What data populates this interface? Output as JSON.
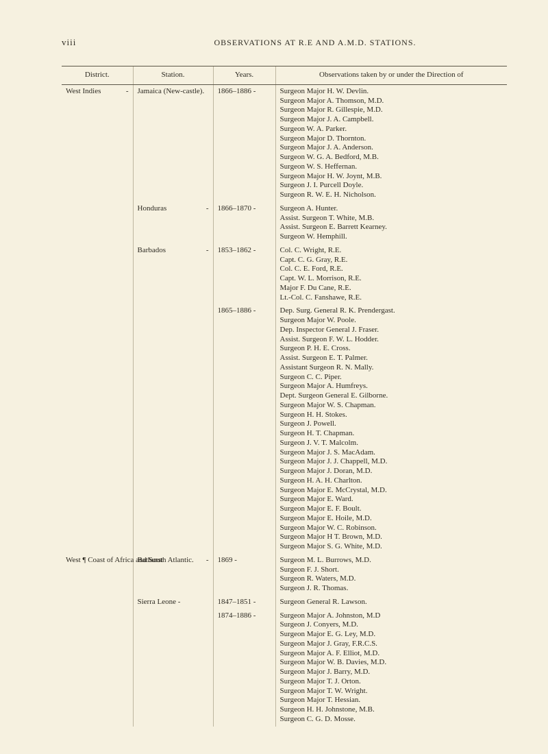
{
  "page_number_label": "viii",
  "running_title": "OBSERVATIONS AT R.E AND A.M.D. STATIONS.",
  "columns": {
    "district": "District.",
    "station": "Station.",
    "years": "Years.",
    "observations": "Observations taken by or under the Direction of"
  },
  "rows": [
    {
      "district": "West Indies",
      "district_dash": "-",
      "station": "Jamaica (New-castle).",
      "years": "1866–1886 -",
      "observations": [
        "Surgeon Major H. W. Devlin.",
        "Surgeon Major A. Thomson, M.D.",
        "Surgeon Major R. Gillespie, M.D.",
        "Surgeon Major J. A. Campbell.",
        "Surgeon W. A. Parker.",
        "Surgeon Major D. Thornton.",
        "Surgeon Major J. A. Anderson.",
        "Surgeon W. G. A. Bedford, M.B.",
        "Surgeon W. S. Heffernan.",
        "Surgeon Major H. W. Joynt, M.B.",
        "Surgeon J. I. Purcell Doyle.",
        "Surgeon R. W. E. H. Nicholson."
      ]
    },
    {
      "district": "",
      "district_dash": "",
      "station": "Honduras",
      "station_dash": "-",
      "years": "1866–1870 -",
      "observations": [
        "Surgeon A. Hunter.",
        "Assist. Surgeon T. White, M.B.",
        "Assist. Surgeon E. Barrett Kearney.",
        "Surgeon W. Hemphill."
      ]
    },
    {
      "district": "",
      "district_dash": "",
      "station": "Barbados",
      "station_dash": "-",
      "years": "1853–1862 -",
      "observations": [
        "Col. C. Wright, R.E.",
        "Capt. C. G. Gray, R.E.",
        "Col. C. E. Ford, R.E.",
        "Capt. W. L. Morrison, R.E.",
        "Major F. Du Cane, R.E.",
        "Lt.-Col. C. Fanshawe, R.E."
      ]
    },
    {
      "district": "",
      "district_dash": "",
      "station": "",
      "years": "1865–1886 -",
      "observations": [
        "Dep. Surg. General R. K. Prendergast.",
        "Surgeon Major W. Poole.",
        "Dep. Inspector General J. Fraser.",
        "Assist. Surgeon F. W. L. Hodder.",
        "Surgeon P. H. E. Cross.",
        "Assist. Surgeon E. T. Palmer.",
        "Assistant Surgeon R. N. Mally.",
        "Surgeon C. C. Piper.",
        "Surgeon Major A. Humfreys.",
        "Dept. Surgeon General E. Gilborne.",
        "Surgeon Major W. S. Chapman.",
        "Surgeon H. H. Stokes.",
        "Surgeon J. Powell.",
        "Surgeon H. T. Chapman.",
        "Surgeon J. V. T. Malcolm.",
        "Surgeon Major J. S. MacAdam.",
        "Surgeon Major J. J. Chappell, M.D.",
        "Surgeon Major J. Doran, M.D.",
        "Surgeon H. A. H. Charlton.",
        "Surgeon Major E. McCrystal, M.D.",
        "Surgeon Major E. Ward.",
        "Surgeon Major E. F. Boult.",
        "Surgeon Major E. Hoile, M.D.",
        "Surgeon Major W. C. Robinson.",
        "Surgeon Major H T. Brown, M.D.",
        "Surgeon Major S. G. White, M.D."
      ]
    },
    {
      "district": "West ¶ Coast of Africa and South Atlantic.",
      "district_dash": "",
      "station": "Bathurst",
      "station_dash": "-",
      "years": "1869       -",
      "observations": [
        "Surgeon M. L. Burrows, M.D.",
        "Surgeon F. J. Short.",
        "Surgeon R. Waters, M.D.",
        "Surgeon J. R. Thomas."
      ]
    },
    {
      "district": "",
      "district_dash": "",
      "station": "Sierra Leone  -",
      "years": "1847–1851 -",
      "observations": [
        "Surgeon General R. Lawson."
      ]
    },
    {
      "district": "",
      "district_dash": "",
      "station": "",
      "years": "1874–1886 -",
      "observations": [
        "Surgeon Major A. Johnston, M.D",
        "Surgeon J. Conyers, M.D.",
        "Surgeon Major E. G. Ley, M.D.",
        "Surgeon Major J. Gray, F.R.C.S.",
        "Surgeon Major A. F. Elliot, M.D.",
        "Surgeon Major W. B. Davies, M.D.",
        "Surgeon Major J. Barry, M.D.",
        "Surgeon Major T. J. Orton.",
        "Surgeon Major T. W. Wright.",
        "Surgeon Major T. Hessian.",
        "Surgeon H. H. Johnstone, M.B.",
        "Surgeon C. G. D. Mosse."
      ]
    }
  ]
}
